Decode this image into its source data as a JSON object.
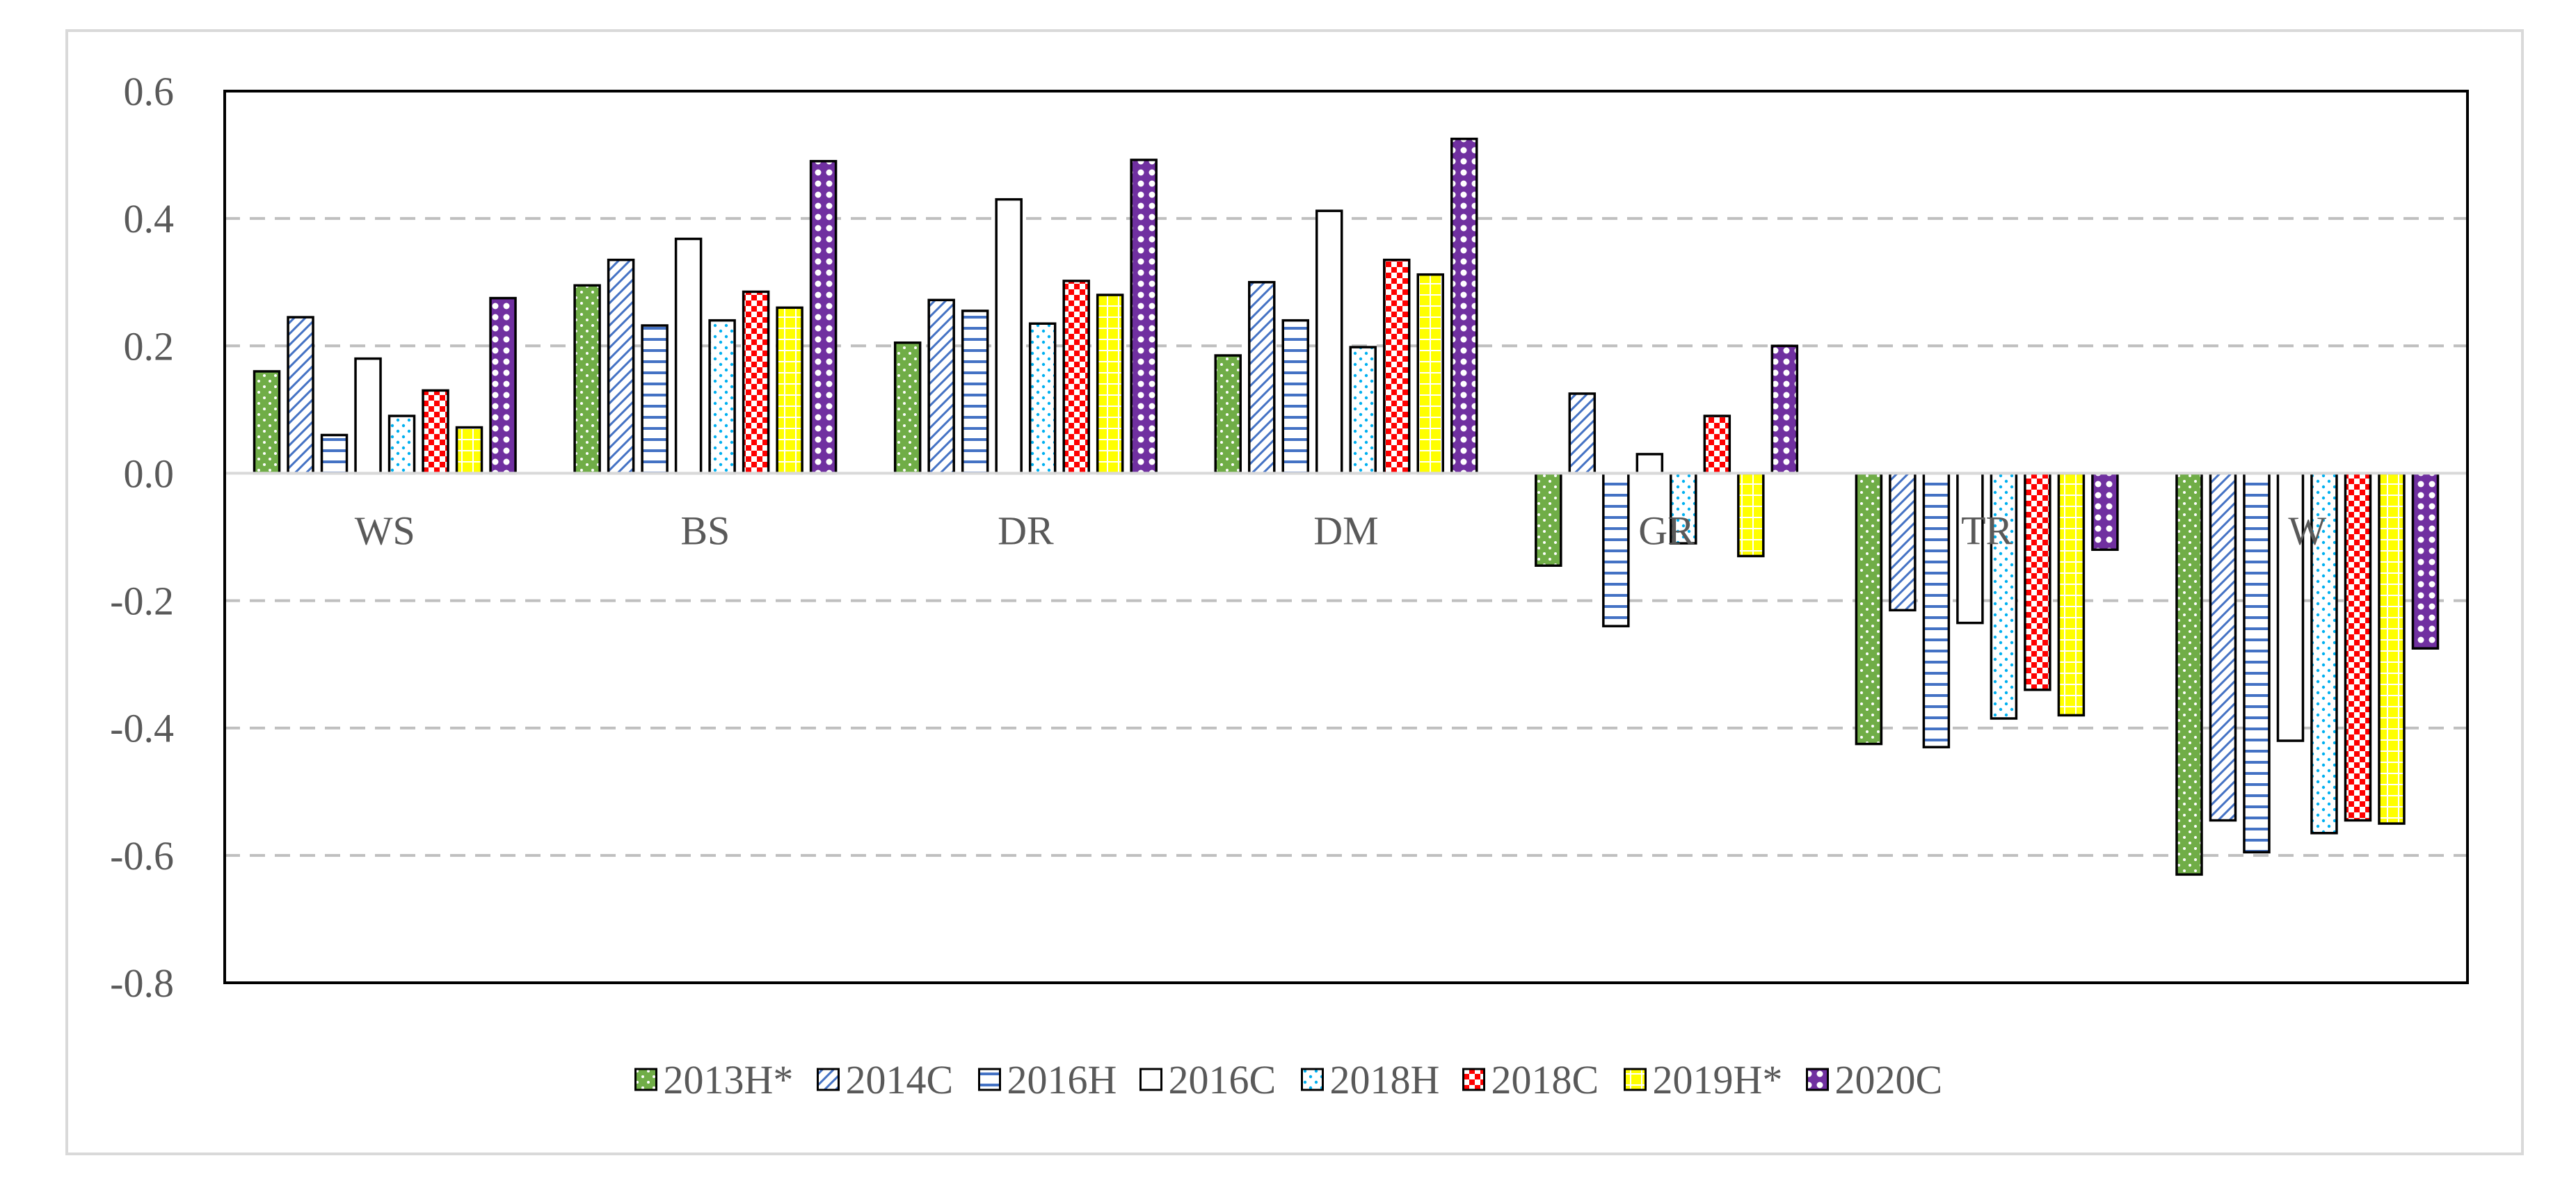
{
  "chart_data": {
    "type": "bar",
    "title": "",
    "xlabel": "",
    "ylabel": "",
    "ylim": [
      -0.8,
      0.6
    ],
    "yticks": [
      0.6,
      0.4,
      0.2,
      0.0,
      -0.2,
      -0.4,
      -0.6,
      -0.8
    ],
    "ytick_labels": [
      "0.6",
      "0.4",
      "0.2",
      "0.0",
      "-0.2",
      "-0.4",
      "-0.6",
      "-0.8"
    ],
    "grid": true,
    "legend_position": "bottom",
    "categories": [
      "WS",
      "BS",
      "DR",
      "DM",
      "GR",
      "TR",
      "W"
    ],
    "series": [
      {
        "name": "2013H*",
        "color": "#70ad47",
        "pattern": "dots-white",
        "values": [
          0.16,
          0.295,
          0.205,
          0.185,
          -0.145,
          -0.425,
          -0.63
        ]
      },
      {
        "name": "2014C",
        "color": "#4472c4",
        "pattern": "diagonal-lines",
        "values": [
          0.245,
          0.335,
          0.272,
          0.3,
          0.125,
          -0.215,
          -0.545
        ]
      },
      {
        "name": "2016H",
        "color": "#4472c4",
        "pattern": "horizontal-lines",
        "values": [
          0.06,
          0.232,
          0.255,
          0.24,
          -0.24,
          -0.43,
          -0.595
        ]
      },
      {
        "name": "2016C",
        "color": "#000000",
        "pattern": "solid-white",
        "values": [
          0.18,
          0.368,
          0.43,
          0.412,
          0.03,
          -0.235,
          -0.42
        ]
      },
      {
        "name": "2018H",
        "color": "#00b0f0",
        "pattern": "dots-blue",
        "values": [
          0.09,
          0.24,
          0.235,
          0.198,
          -0.11,
          -0.385,
          -0.565
        ]
      },
      {
        "name": "2018C",
        "color": "#ff0000",
        "pattern": "checker-red",
        "values": [
          0.13,
          0.285,
          0.302,
          0.335,
          0.09,
          -0.34,
          -0.545
        ]
      },
      {
        "name": "2019H*",
        "color": "#ffff00",
        "pattern": "grid-yellow",
        "values": [
          0.072,
          0.26,
          0.28,
          0.312,
          -0.13,
          -0.38,
          -0.55
        ]
      },
      {
        "name": "2020C",
        "color": "#7030a0",
        "pattern": "circles-purple",
        "values": [
          0.275,
          0.49,
          0.492,
          0.525,
          0.2,
          -0.12,
          -0.275
        ]
      }
    ]
  }
}
